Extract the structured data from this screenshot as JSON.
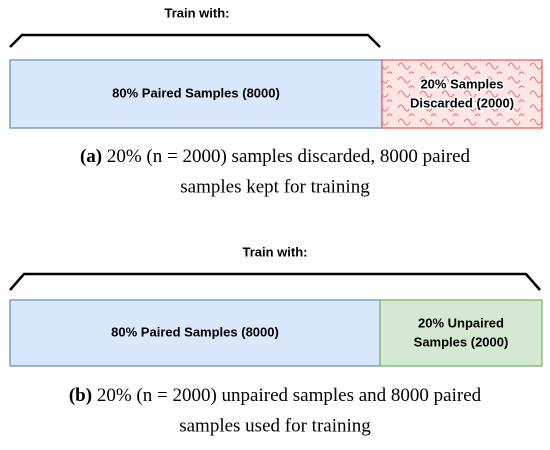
{
  "panels": [
    {
      "bracket_label": "Train with:",
      "left_box": "80% Paired Samples (8000)",
      "right_box": [
        "20% Samples",
        "Discarded (2000)"
      ],
      "caption_label": "(a)",
      "caption": [
        "20% (n = 2000) samples discarded, 8000 paired",
        "samples kept for training"
      ]
    },
    {
      "bracket_label": "Train with:",
      "left_box": "80% Paired Samples (8000)",
      "right_box": [
        "20% Unpaired",
        "Samples (2000)"
      ],
      "caption_label": "(b)",
      "caption": [
        "20% (n = 2000) unpaired samples and 8000 paired",
        "samples used for training"
      ]
    }
  ]
}
